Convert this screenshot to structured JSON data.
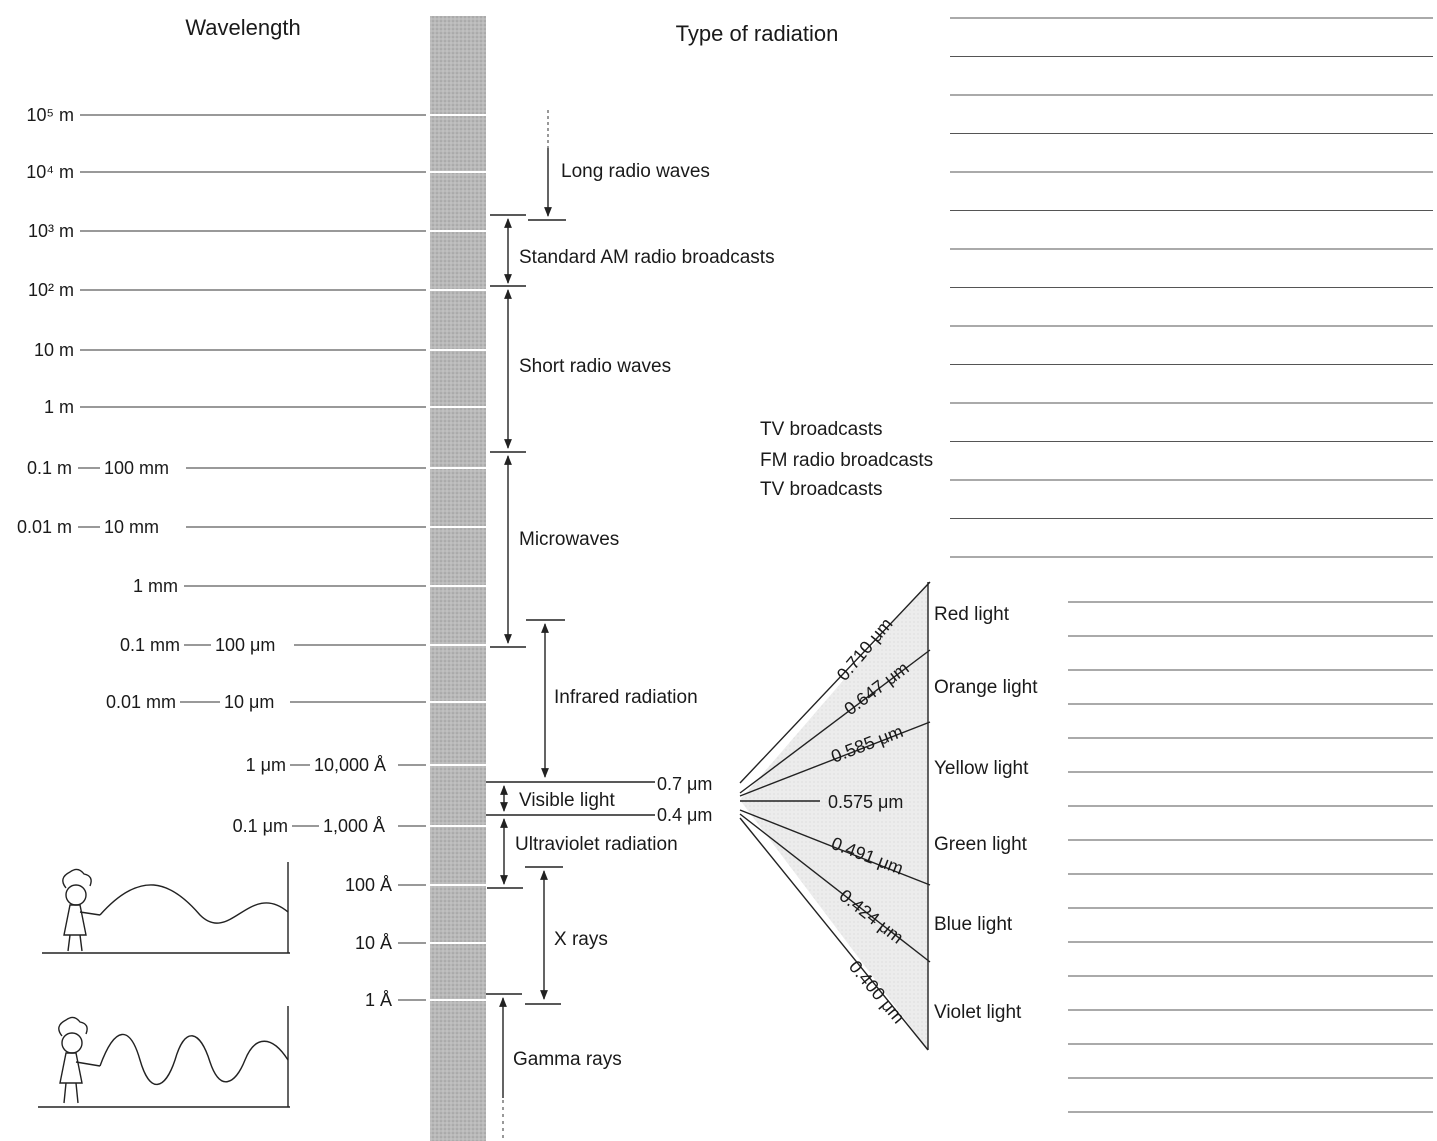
{
  "headers": {
    "wavelength": "Wavelength",
    "type_of_radiation": "Type of radiation"
  },
  "wavelength_ticks": [
    {
      "m": "10⁵ m",
      "b": "",
      "c": ""
    },
    {
      "m": "10⁴ m",
      "b": "",
      "c": ""
    },
    {
      "m": "10³ m",
      "b": "",
      "c": ""
    },
    {
      "m": "10² m",
      "b": "",
      "c": ""
    },
    {
      "m": "10 m",
      "b": "",
      "c": ""
    },
    {
      "m": "1 m",
      "b": "",
      "c": ""
    },
    {
      "m": "0.1 m",
      "b": "100 mm",
      "c": ""
    },
    {
      "m": "0.01 m",
      "b": "10 mm",
      "c": ""
    },
    {
      "m": "",
      "b": "1 mm",
      "c": ""
    },
    {
      "m": "",
      "b": "0.1 mm",
      "c": "100 μm"
    },
    {
      "m": "",
      "b": "0.01 mm",
      "c": "10 μm"
    },
    {
      "m": "",
      "b": "1 μm",
      "c": "10,000 Å"
    },
    {
      "m": "",
      "b": "0.1 μm",
      "c": "1,000 Å"
    },
    {
      "m": "",
      "b": "",
      "c": "100 Å"
    },
    {
      "m": "",
      "b": "",
      "c": "10 Å"
    },
    {
      "m": "",
      "b": "",
      "c": "1 Å"
    }
  ],
  "radiation_types": [
    "Long radio waves",
    "Standard AM radio broadcasts",
    "Short radio waves",
    "Microwaves",
    "Infrared radiation",
    "Visible light",
    "Ultraviolet radiation",
    "X rays",
    "Gamma rays"
  ],
  "broadcast_labels": [
    "TV broadcasts",
    "FM radio broadcasts",
    "TV broadcasts"
  ],
  "visible_bounds": [
    "0.7 μm",
    "0.4 μm"
  ],
  "color_boundaries": [
    "0.710 μm",
    "0.647 μm",
    "0.585 μm",
    "0.575 μm",
    "0.491 μm",
    "0.424 μm",
    "0.400 μm"
  ],
  "colors": [
    "Red light",
    "Orange light",
    "Yellow light",
    "Green light",
    "Blue light",
    "Violet light"
  ]
}
